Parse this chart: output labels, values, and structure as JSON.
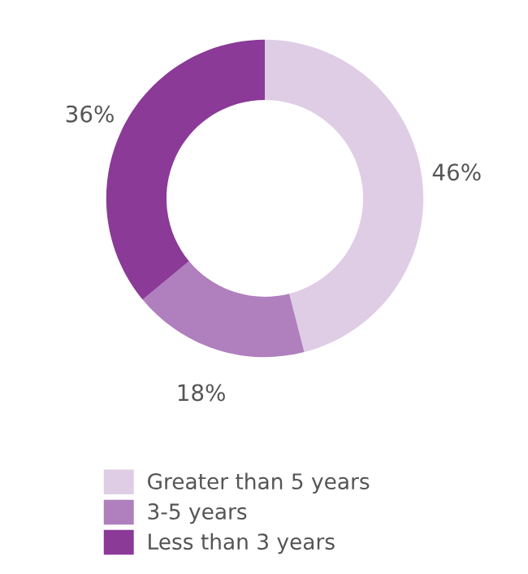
{
  "chart_data": {
    "type": "donut",
    "categories": [
      "Greater than 5 years",
      "3-5 years",
      "Less than 3 years"
    ],
    "values": [
      46,
      18,
      36
    ],
    "colors": [
      "#dfcde6",
      "#b07fbd",
      "#8b3a98"
    ],
    "value_labels": [
      "46%",
      "18%",
      "36%"
    ],
    "legend": "bottom"
  }
}
